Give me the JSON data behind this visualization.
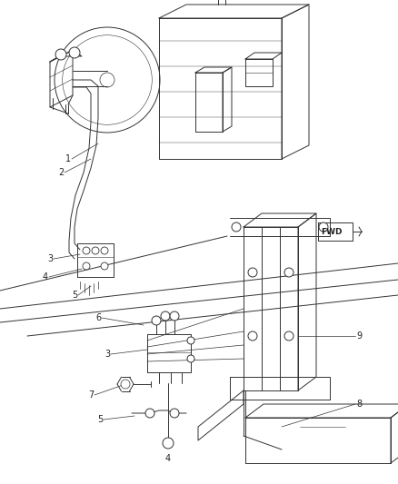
{
  "bg_color": "#ffffff",
  "line_color": "#333333",
  "label_color": "#222222",
  "fig_width": 4.38,
  "fig_height": 5.33,
  "dpi": 100,
  "lw": 0.7
}
